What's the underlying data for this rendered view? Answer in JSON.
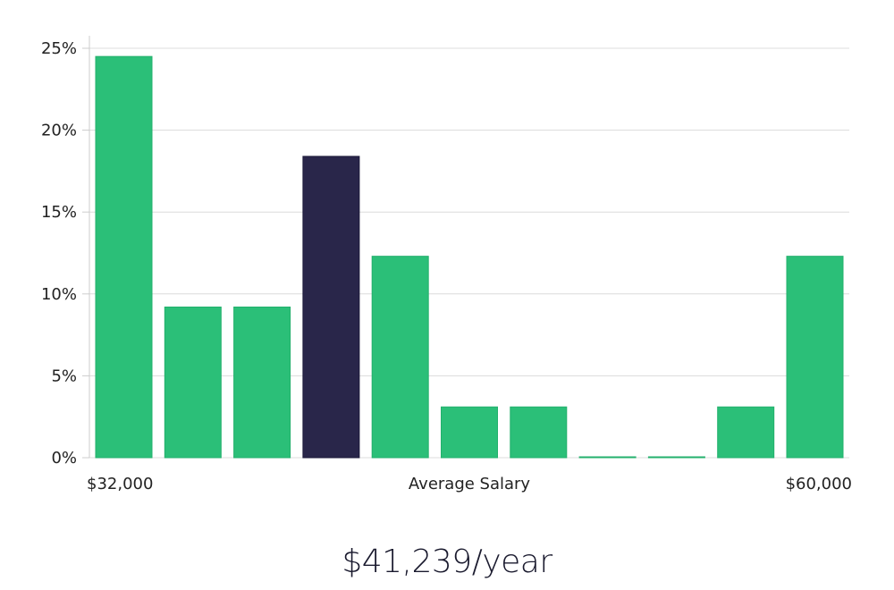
{
  "chart_data": {
    "type": "bar",
    "title": "",
    "xlabel": "Average Salary",
    "x_range_labels": {
      "min": "$32,000",
      "max": "$60,000"
    },
    "ylabel": "",
    "ylim": [
      0,
      25
    ],
    "yticks": [
      0,
      5,
      10,
      15,
      20,
      25
    ],
    "ytick_labels": [
      "0%",
      "5%",
      "10%",
      "15%",
      "20%",
      "25%"
    ],
    "values": [
      24.5,
      9.2,
      9.2,
      18.4,
      12.3,
      3.1,
      3.1,
      0,
      0,
      3.1,
      12.3
    ],
    "highlight_index": 3,
    "colors": {
      "bar": "#2bbf78",
      "highlight": "#29264a",
      "grid": "#dcdcdc",
      "axis": "#cccccc"
    },
    "grid": true
  },
  "average_salary": "$41,239/year"
}
